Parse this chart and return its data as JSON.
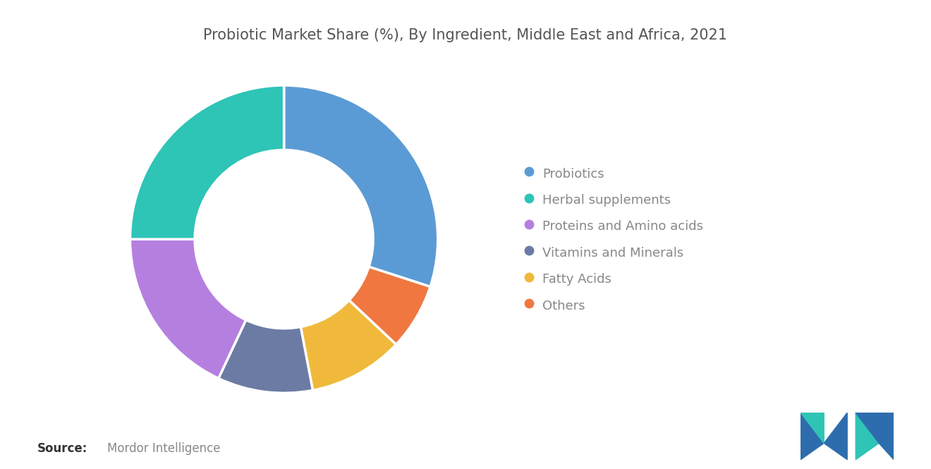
{
  "title": "Probiotic Market Share (%), By Ingredient, Middle East and Africa, 2021",
  "labels": [
    "Probiotics",
    "Herbal supplements",
    "Proteins and Amino acids",
    "Vitamins and Minerals",
    "Fatty Acids",
    "Others"
  ],
  "values": [
    30,
    25,
    18,
    10,
    10,
    7
  ],
  "colors": [
    "#5B9BD5",
    "#2EC4B6",
    "#B57FE0",
    "#6B7BA4",
    "#F0B93B",
    "#F07840"
  ],
  "background_color": "#ffffff",
  "title_fontsize": 15,
  "title_color": "#555555",
  "legend_fontsize": 13,
  "legend_text_color": "#888888",
  "source_bold": "Source:",
  "source_normal": "Mordor Intelligence",
  "source_fontsize": 12,
  "donut_width": 0.42,
  "start_angle": 90,
  "logo_blue": "#2E6DAD",
  "logo_teal": "#2EC4B6"
}
